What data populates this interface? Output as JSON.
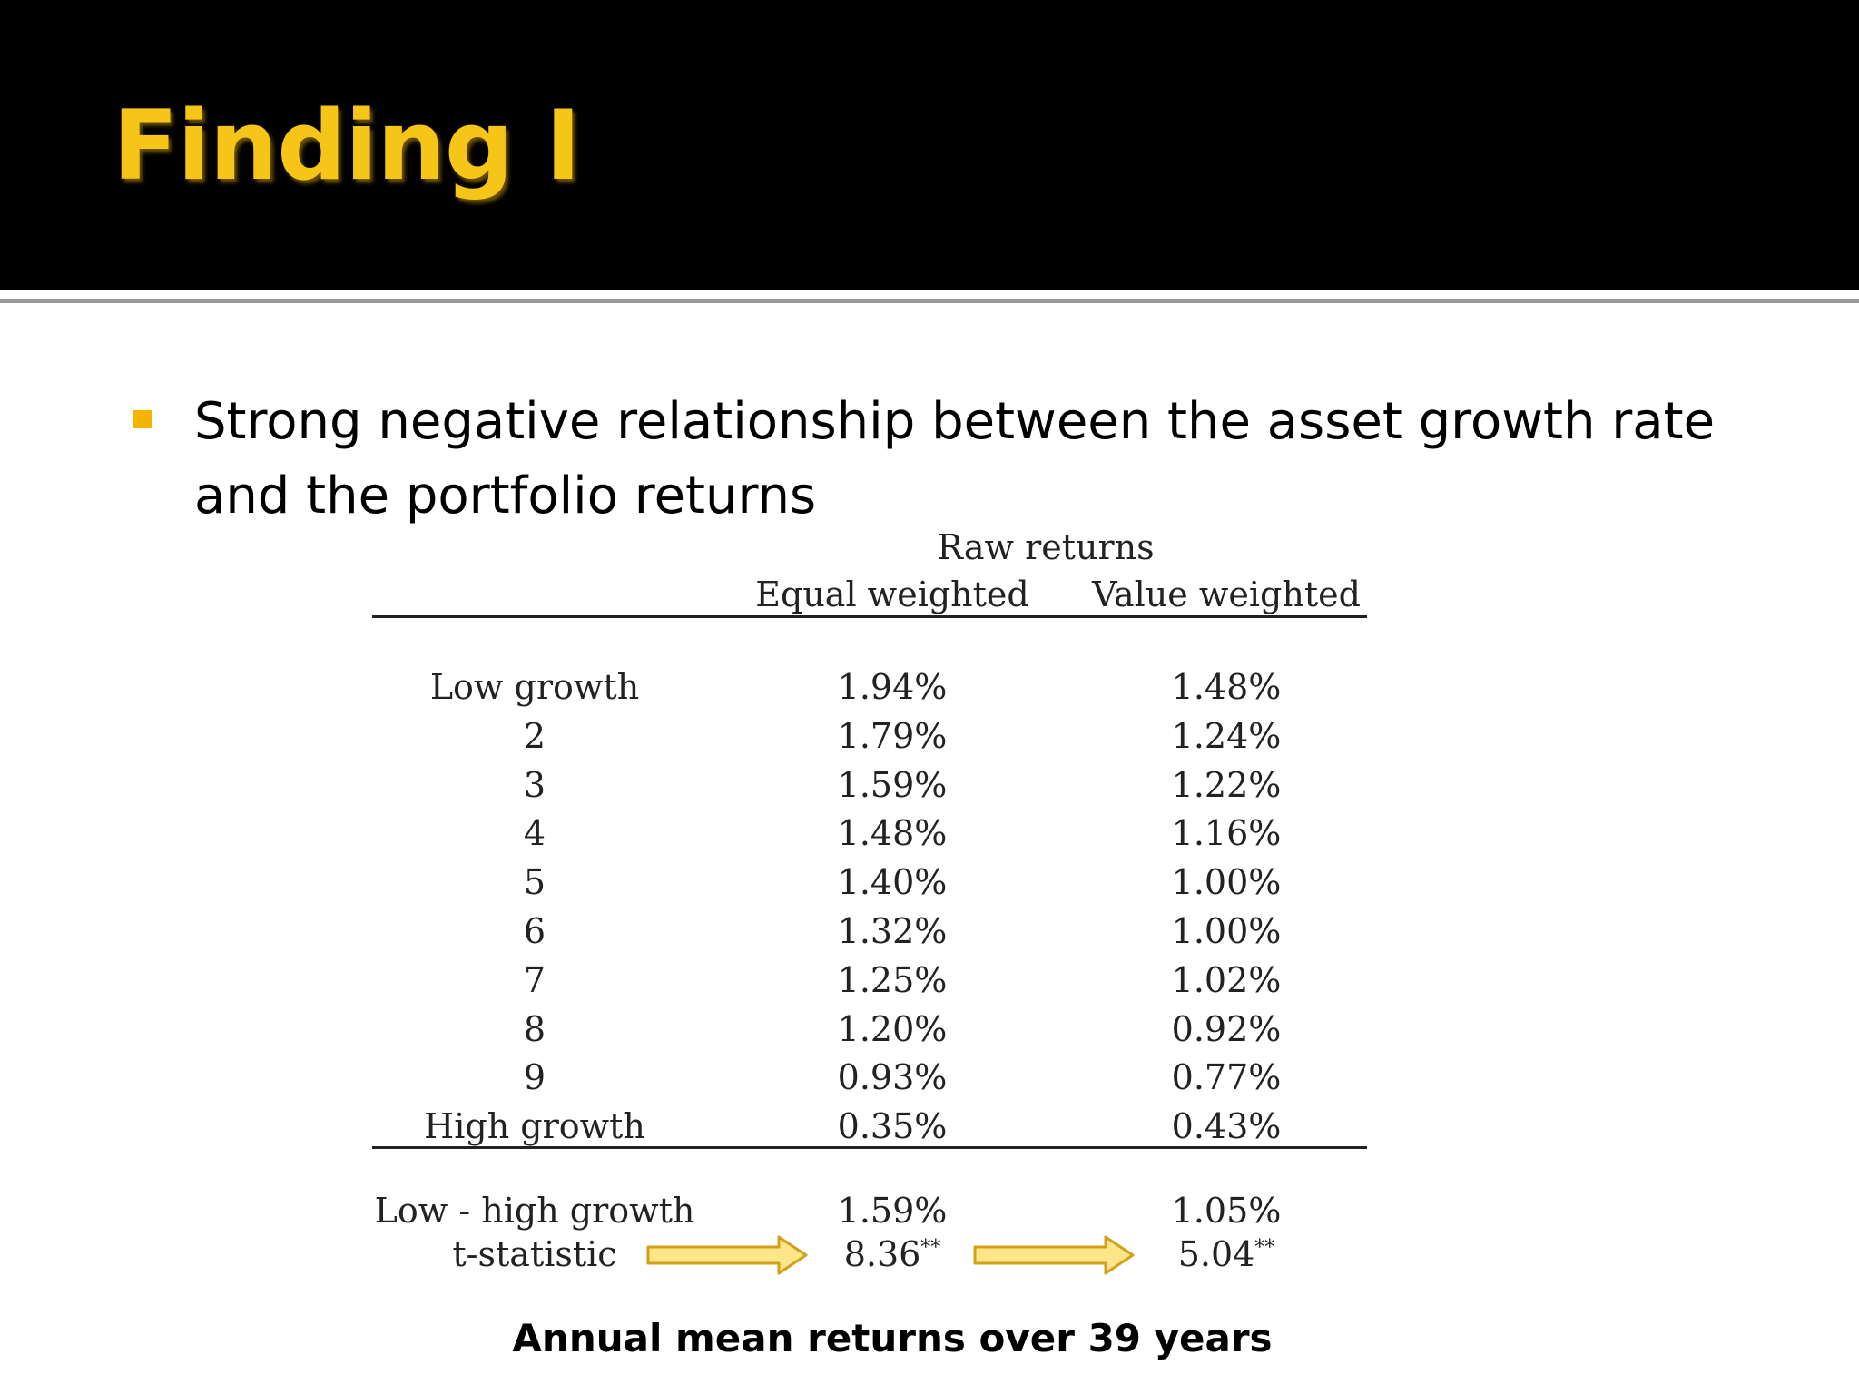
{
  "slide": {
    "title": "Finding I",
    "bullet": "Strong negative relationship between the asset growth rate and the portfolio returns",
    "caption": "Annual mean returns over 39 years",
    "colors": {
      "title": "#f5c518",
      "header_background": "#000000",
      "bullet_marker": "#f5b400",
      "arrow_fill": "#fde68a",
      "arrow_stroke": "#d4a017"
    }
  },
  "table": {
    "group_header": "Raw returns",
    "columns": [
      "Equal weighted",
      "Value weighted"
    ],
    "rows": [
      {
        "label": "Low growth",
        "equal": "1.94%",
        "value": "1.48%"
      },
      {
        "label": "2",
        "equal": "1.79%",
        "value": "1.24%"
      },
      {
        "label": "3",
        "equal": "1.59%",
        "value": "1.22%"
      },
      {
        "label": "4",
        "equal": "1.48%",
        "value": "1.16%"
      },
      {
        "label": "5",
        "equal": "1.40%",
        "value": "1.00%"
      },
      {
        "label": "6",
        "equal": "1.32%",
        "value": "1.00%"
      },
      {
        "label": "7",
        "equal": "1.25%",
        "value": "1.02%"
      },
      {
        "label": "8",
        "equal": "1.20%",
        "value": "0.92%"
      },
      {
        "label": "9",
        "equal": "0.93%",
        "value": "0.77%"
      },
      {
        "label": "High growth",
        "equal": "0.35%",
        "value": "0.43%"
      }
    ],
    "spread": {
      "label": "Low - high growth",
      "equal": "1.59%",
      "value": "1.05%"
    },
    "tstat": {
      "label": "t-statistic",
      "equal": "8.36",
      "value": "5.04",
      "significance": "**"
    },
    "arrow_icon": "right-arrow-icon"
  }
}
